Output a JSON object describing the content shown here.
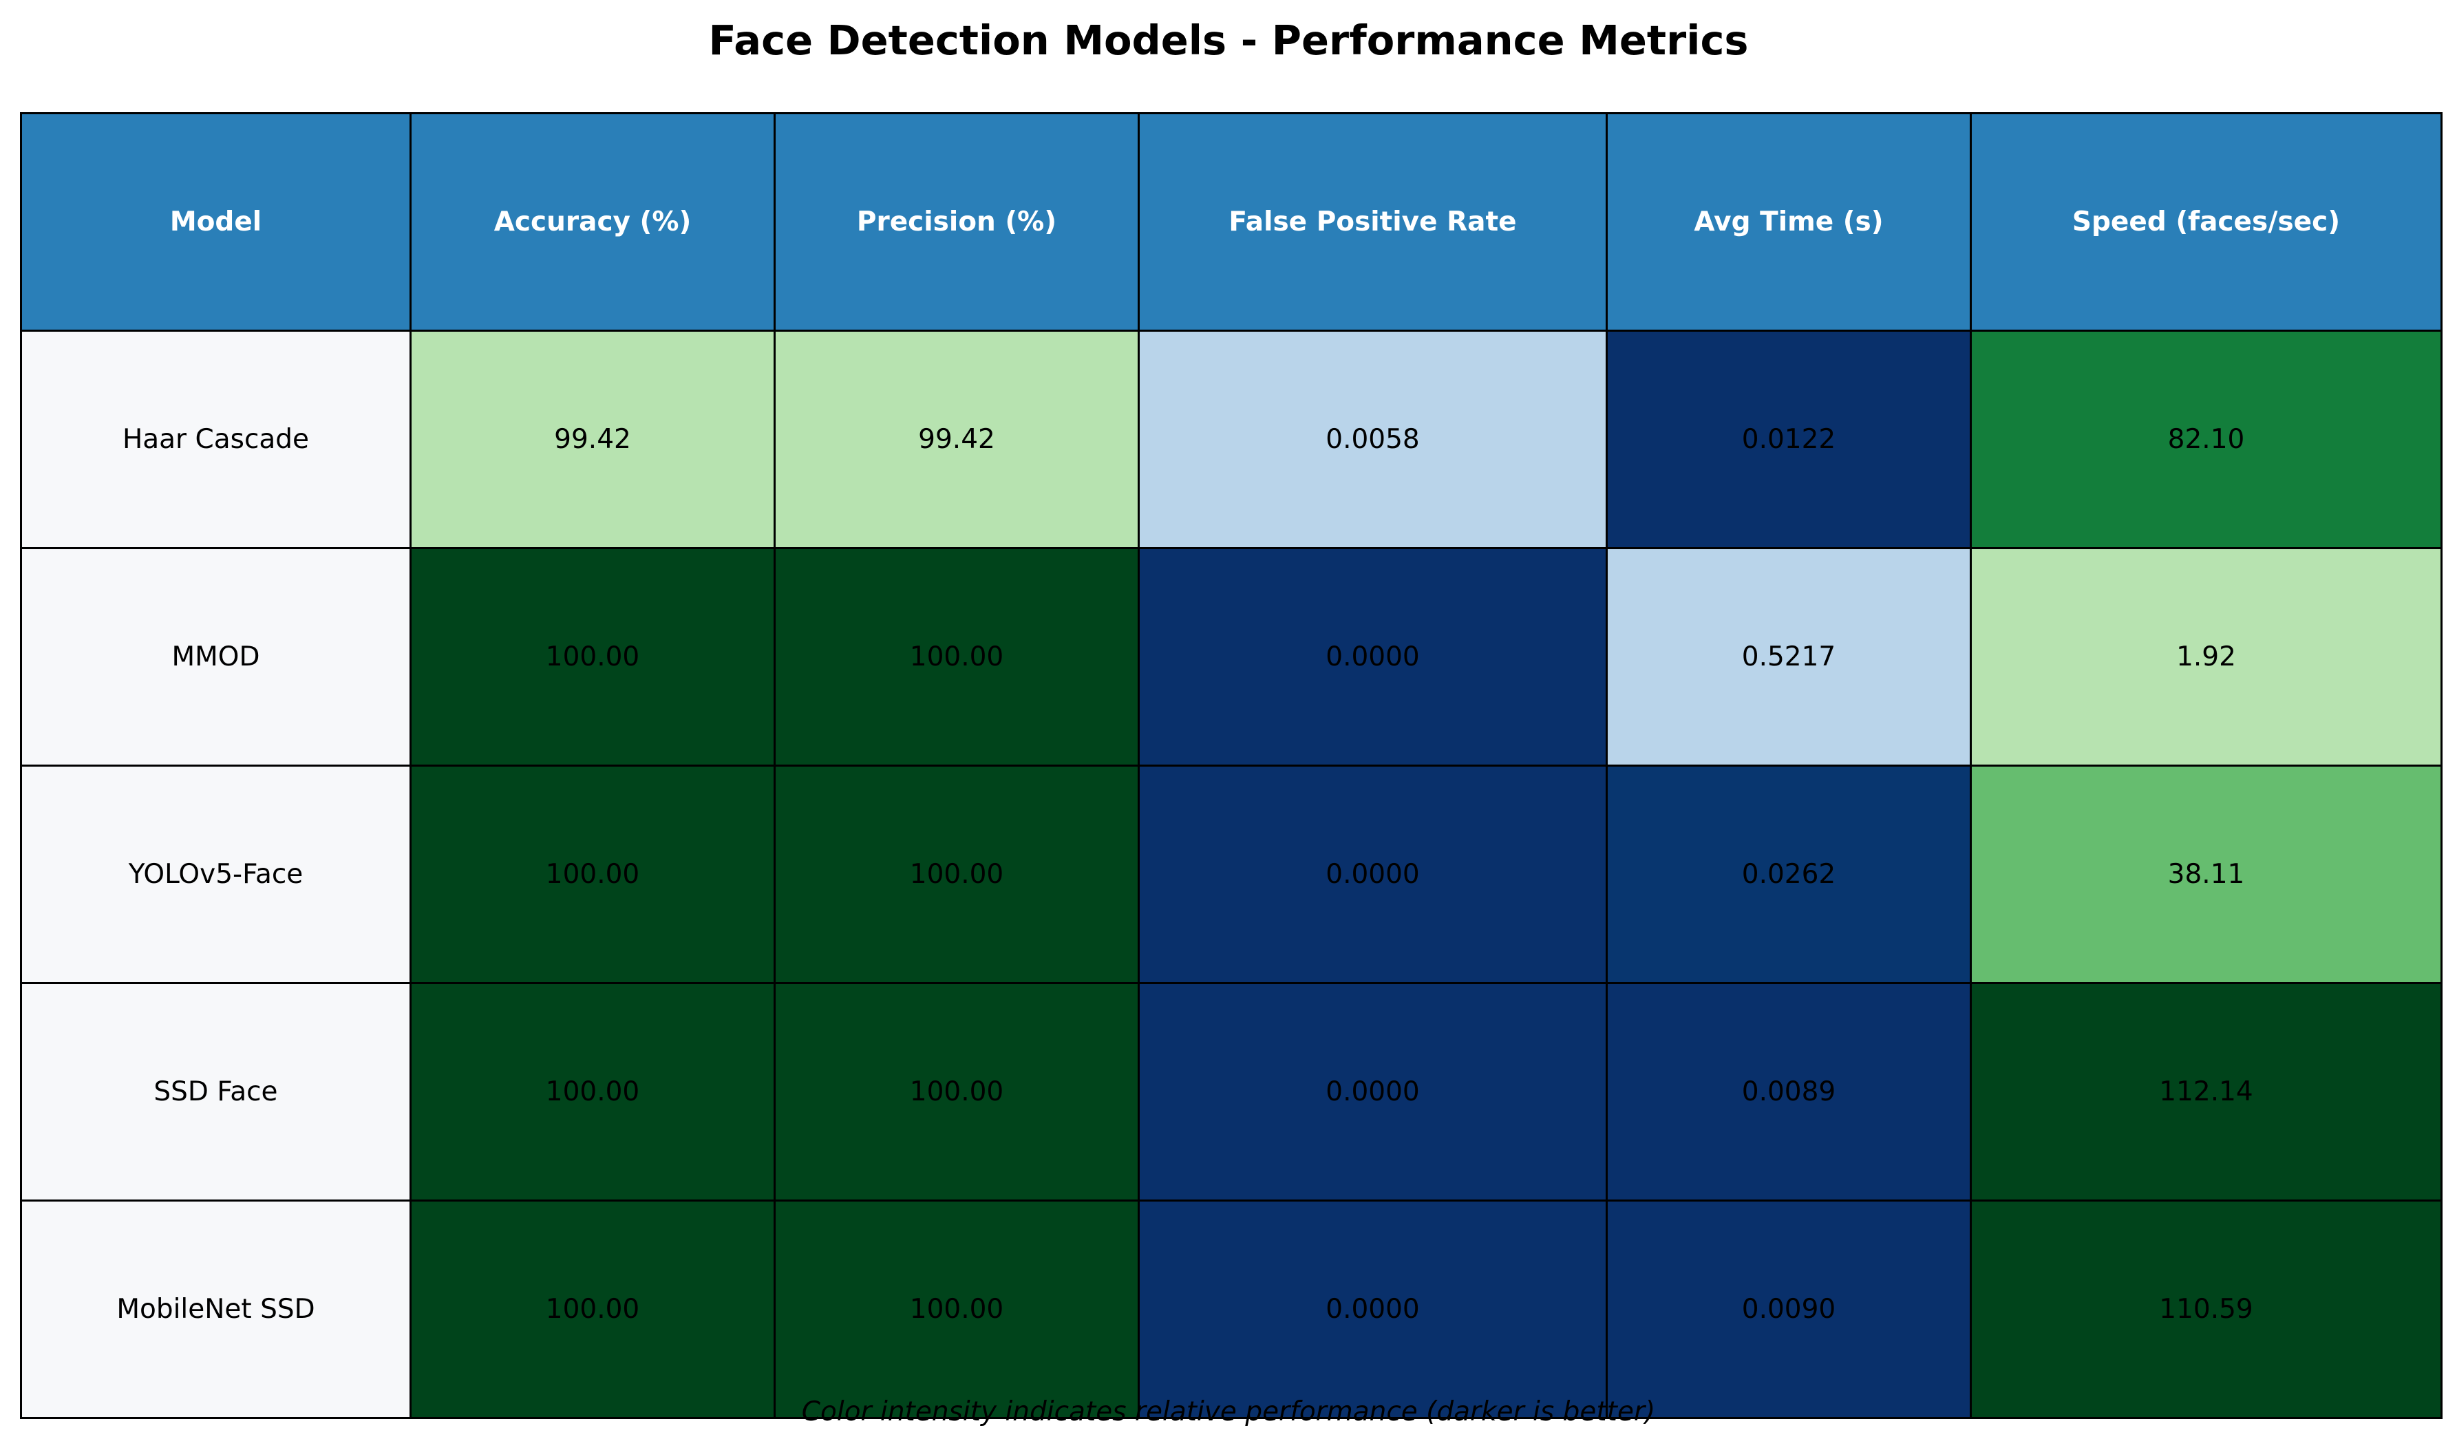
{
  "title": "Face Detection Models - Performance Metrics",
  "footnote": "Color intensity indicates relative performance (darker is better)",
  "colors": {
    "header_bg": "#2a7fb8",
    "header_text": "#ffffff",
    "model_bg": "#f7f8fa",
    "border": "#000000",
    "green_light": "#b7e3b0",
    "green_medium": "#66bd6f",
    "green_strong": "#137e3b",
    "green_dark": "#00441b",
    "blue_light": "#b9d4ea",
    "blue_medium": "#08366f",
    "blue_dark": "#09306b"
  },
  "chart_data": {
    "type": "table",
    "title": "Face Detection Models - Performance Metrics",
    "columns": [
      "Model",
      "Accuracy (%)",
      "Precision (%)",
      "False Positive Rate",
      "Avg Time (s)",
      "Speed (faces/sec)"
    ],
    "rows": [
      {
        "model": "Haar Cascade",
        "values": [
          "99.42",
          "99.42",
          "0.0058",
          "0.0122",
          "82.10"
        ],
        "shades": [
          "green_light",
          "green_light",
          "blue_light",
          "blue_dark",
          "green_strong"
        ]
      },
      {
        "model": "MMOD",
        "values": [
          "100.00",
          "100.00",
          "0.0000",
          "0.5217",
          "1.92"
        ],
        "shades": [
          "green_dark",
          "green_dark",
          "blue_dark",
          "blue_light",
          "green_light"
        ]
      },
      {
        "model": "YOLOv5-Face",
        "values": [
          "100.00",
          "100.00",
          "0.0000",
          "0.0262",
          "38.11"
        ],
        "shades": [
          "green_dark",
          "green_dark",
          "blue_dark",
          "blue_medium",
          "green_medium"
        ]
      },
      {
        "model": "SSD Face",
        "values": [
          "100.00",
          "100.00",
          "0.0000",
          "0.0089",
          "112.14"
        ],
        "shades": [
          "green_dark",
          "green_dark",
          "blue_dark",
          "blue_dark",
          "green_dark"
        ]
      },
      {
        "model": "MobileNet SSD",
        "values": [
          "100.00",
          "100.00",
          "0.0000",
          "0.0090",
          "110.59"
        ],
        "shades": [
          "green_dark",
          "green_dark",
          "blue_dark",
          "blue_dark",
          "green_dark"
        ]
      }
    ],
    "footnote": "Color intensity indicates relative performance (darker is better)"
  }
}
